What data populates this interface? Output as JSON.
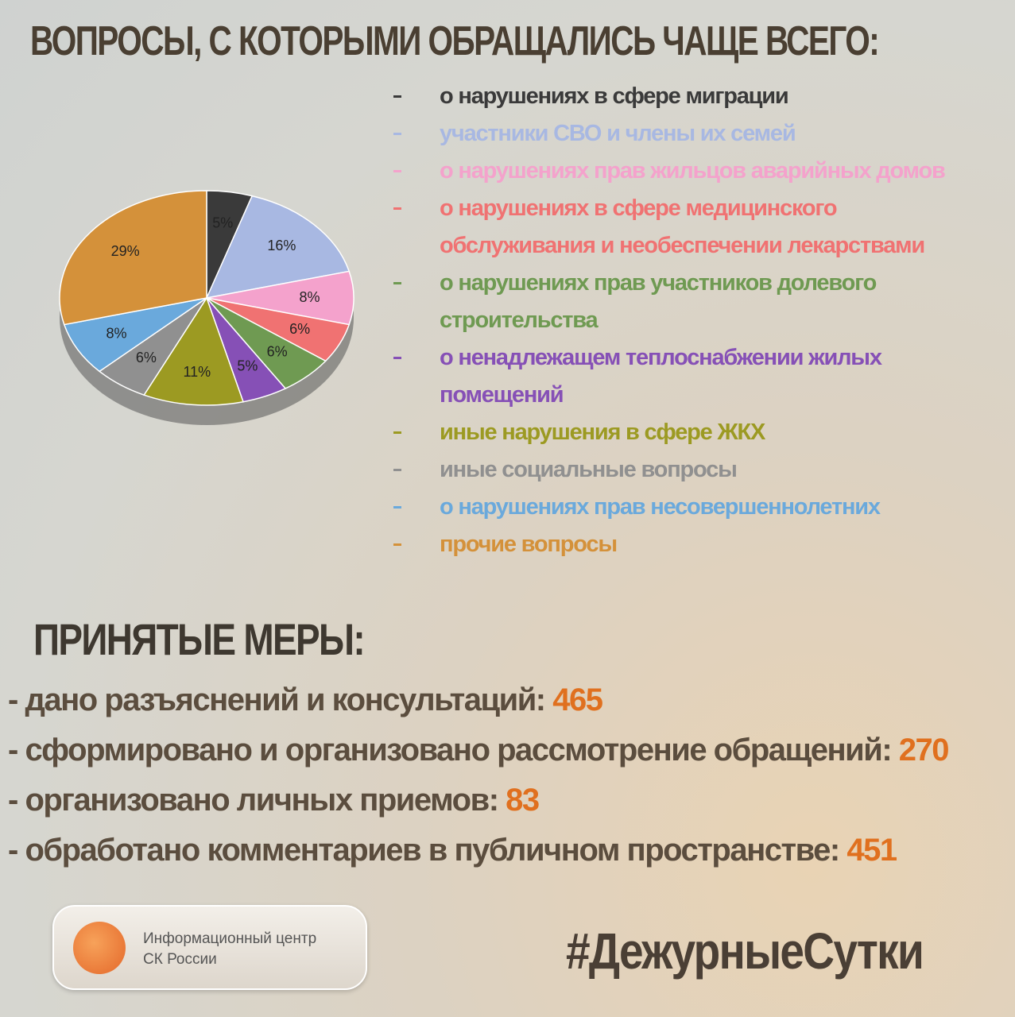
{
  "chart_data": {
    "type": "pie",
    "title": "ВОПРОСЫ, С КОТОРЫМИ ОБРАЩАЛИСЬ ЧАЩЕ ВСЕГО:",
    "categories": [
      "о нарушениях в сфере миграции",
      "участники СВО и члены их семей",
      "о нарушениях прав жильцов аварийных домов",
      "о нарушениях в сфере медицинского обслуживания и необеспечении лекарствами",
      "о нарушениях прав участников долевого строительства",
      "о ненадлежащем теплоснабжении жилых помещений",
      "иные нарушения в сфере ЖКХ",
      "иные социальные вопросы",
      "о нарушениях прав несовершеннолетних",
      "прочие вопросы"
    ],
    "values": [
      5,
      16,
      8,
      6,
      6,
      5,
      11,
      6,
      8,
      29
    ],
    "value_labels": [
      "5%",
      "16%",
      "8%",
      "6%",
      "6%",
      "5%",
      "11%",
      "6%",
      "8%",
      "29%"
    ],
    "colors": [
      "#3a3a3a",
      "#a8b8e2",
      "#f4a2cc",
      "#f07272",
      "#6f9a52",
      "#8650b6",
      "#9c9a22",
      "#909090",
      "#6aa9dc",
      "#d4913a"
    ]
  },
  "measures": {
    "title": "ПРИНЯТЫЕ МЕРЫ:",
    "items": [
      {
        "label": "дано разъяснений и консультаций:",
        "value": 465
      },
      {
        "label": "сформировано и организовано рассмотрение обращений:",
        "value": 270
      },
      {
        "label": "организовано личных приемов:",
        "value": 83
      },
      {
        "label": "обработано комментариев в публичном пространстве:",
        "value": 451
      }
    ]
  },
  "footer": {
    "org_line1": "Информационный центр",
    "org_line2": "СК России",
    "hashtag": "#ДежурныеСутки"
  }
}
